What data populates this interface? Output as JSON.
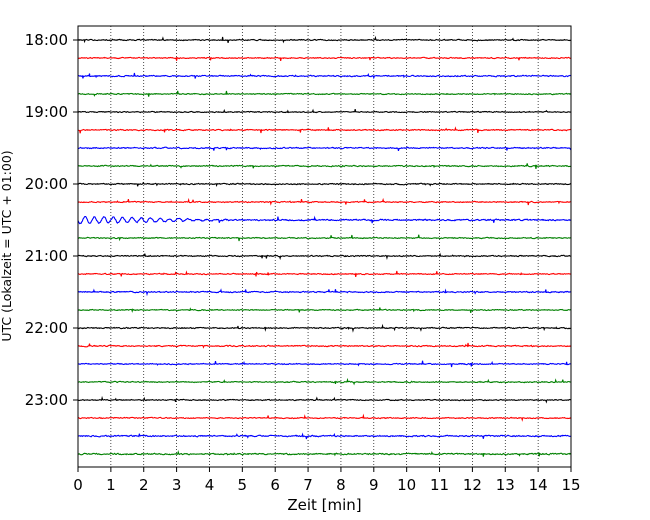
{
  "chart_data": {
    "type": "line",
    "xlabel": "Zeit  [min]",
    "ylabel": "UTC (Lokalzeit = UTC + 01:00)",
    "xlim": [
      0,
      15
    ],
    "x_ticks": [
      "0",
      "1",
      "2",
      "3",
      "4",
      "5",
      "6",
      "7",
      "8",
      "9",
      "10",
      "11",
      "12",
      "13",
      "14",
      "15"
    ],
    "y_ticks": [
      "18:00",
      "19:00",
      "20:00",
      "21:00",
      "22:00",
      "23:00"
    ],
    "grid": "vertical-dotted",
    "colors": [
      "#000000",
      "#ff0000",
      "#0000ff",
      "#008000"
    ],
    "series": [
      {
        "time": "18:00",
        "color": "#000000",
        "noise": 0.22
      },
      {
        "time": "18:15",
        "color": "#ff0000",
        "noise": 0.22
      },
      {
        "time": "18:30",
        "color": "#0000ff",
        "noise": 0.25
      },
      {
        "time": "18:45",
        "color": "#008000",
        "noise": 0.22
      },
      {
        "time": "19:00",
        "color": "#000000",
        "noise": 0.22
      },
      {
        "time": "19:15",
        "color": "#ff0000",
        "noise": 0.24
      },
      {
        "time": "19:30",
        "color": "#0000ff",
        "noise": 0.25
      },
      {
        "time": "19:45",
        "color": "#008000",
        "noise": 0.24
      },
      {
        "time": "20:00",
        "color": "#000000",
        "noise": 0.24
      },
      {
        "time": "20:15",
        "color": "#ff0000",
        "noise": 0.22
      },
      {
        "time": "20:30",
        "color": "#0000ff",
        "noise": 0.3,
        "event": {
          "start": 0,
          "end": 5,
          "amp": 0.9
        }
      },
      {
        "time": "20:45",
        "color": "#008000",
        "noise": 0.22
      },
      {
        "time": "21:00",
        "color": "#000000",
        "noise": 0.24
      },
      {
        "time": "21:15",
        "color": "#ff0000",
        "noise": 0.22
      },
      {
        "time": "21:30",
        "color": "#0000ff",
        "noise": 0.25
      },
      {
        "time": "21:45",
        "color": "#008000",
        "noise": 0.22
      },
      {
        "time": "22:00",
        "color": "#000000",
        "noise": 0.24
      },
      {
        "time": "22:15",
        "color": "#ff0000",
        "noise": 0.24
      },
      {
        "time": "22:30",
        "color": "#0000ff",
        "noise": 0.22
      },
      {
        "time": "22:45",
        "color": "#008000",
        "noise": 0.22
      },
      {
        "time": "23:00",
        "color": "#000000",
        "noise": 0.22
      },
      {
        "time": "23:15",
        "color": "#ff0000",
        "noise": 0.22
      },
      {
        "time": "23:30",
        "color": "#0000ff",
        "noise": 0.28
      },
      {
        "time": "23:45",
        "color": "#008000",
        "noise": 0.28
      }
    ]
  }
}
